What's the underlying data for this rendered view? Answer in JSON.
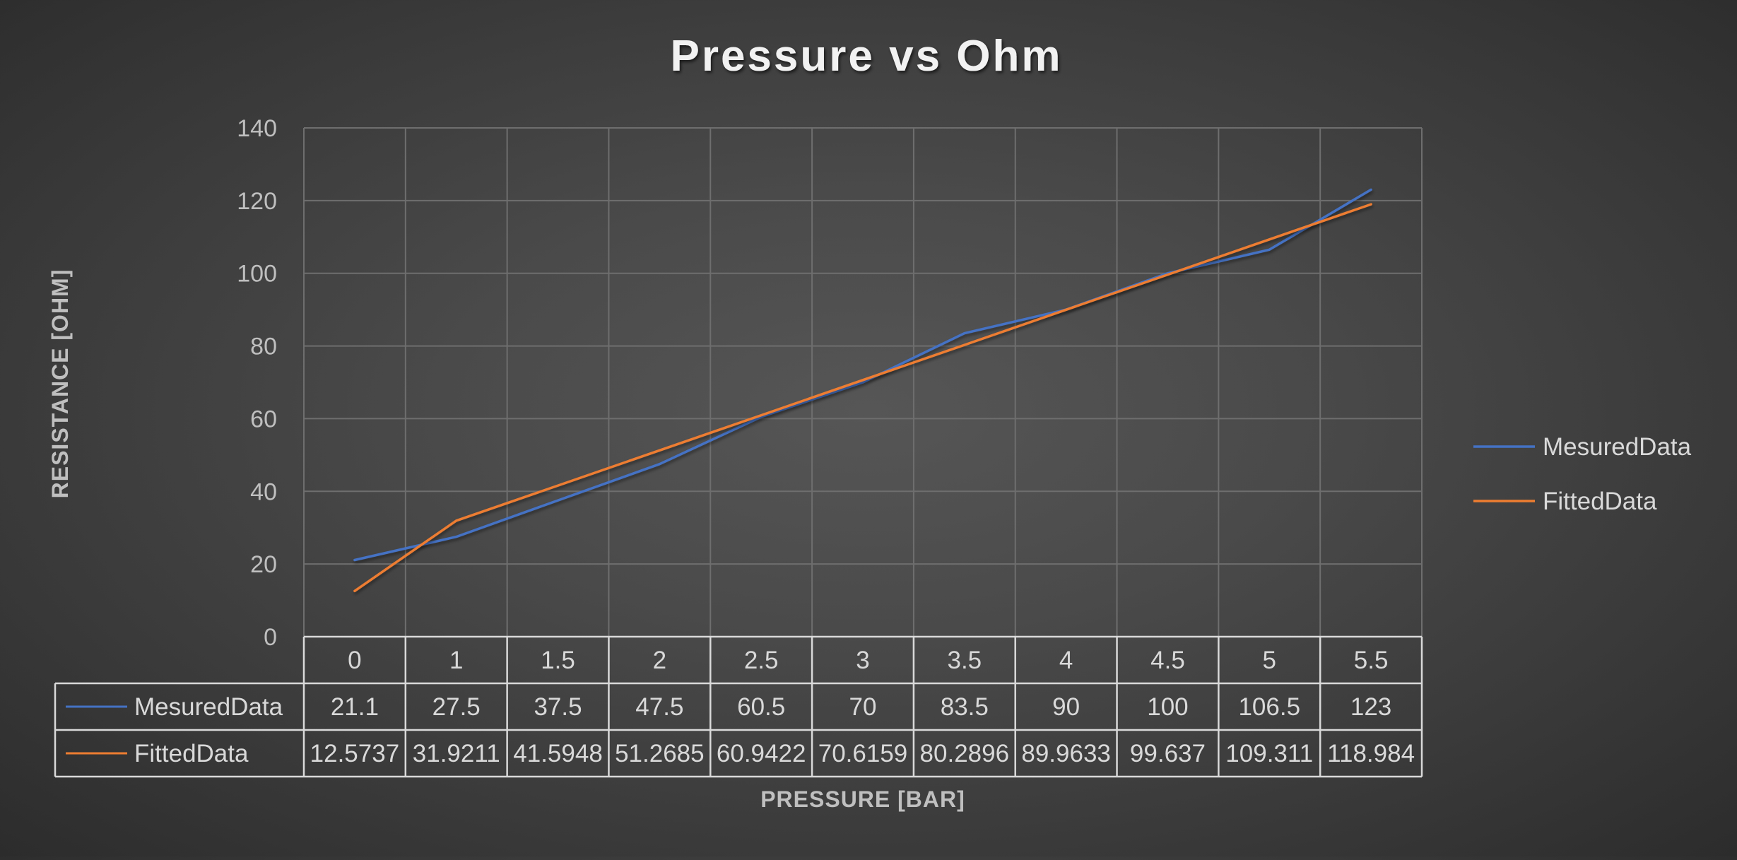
{
  "chart_data": {
    "type": "line",
    "title": "Pressure vs Ohm",
    "xlabel": "PRESSURE [BAR]",
    "ylabel": "RESISTANCE [OHM]",
    "categories": [
      "0",
      "1",
      "1.5",
      "2",
      "2.5",
      "3",
      "3.5",
      "4",
      "4.5",
      "5",
      "5.5"
    ],
    "ylim": [
      0,
      140
    ],
    "yticks": [
      "0",
      "20",
      "40",
      "60",
      "80",
      "100",
      "120",
      "140"
    ],
    "grid": true,
    "legend_position": "right",
    "data_table": true,
    "series": [
      {
        "name": "MesuredData",
        "color": "#4472c4",
        "values": [
          21.1,
          27.5,
          37.5,
          47.5,
          60.5,
          70,
          83.5,
          90,
          100,
          106.5,
          123
        ],
        "labels": [
          "21.1",
          "27.5",
          "37.5",
          "47.5",
          "60.5",
          "70",
          "83.5",
          "90",
          "100",
          "106.5",
          "123"
        ]
      },
      {
        "name": "FittedData",
        "color": "#ed7d31",
        "values": [
          12.5737,
          31.9211,
          41.5948,
          51.2685,
          60.9422,
          70.6159,
          80.2896,
          89.9633,
          99.637,
          109.311,
          118.984
        ],
        "labels": [
          "12.5737",
          "31.9211",
          "41.5948",
          "51.2685",
          "60.9422",
          "70.6159",
          "80.2896",
          "89.9633",
          "99.637",
          "109.311",
          "118.984"
        ]
      }
    ]
  }
}
